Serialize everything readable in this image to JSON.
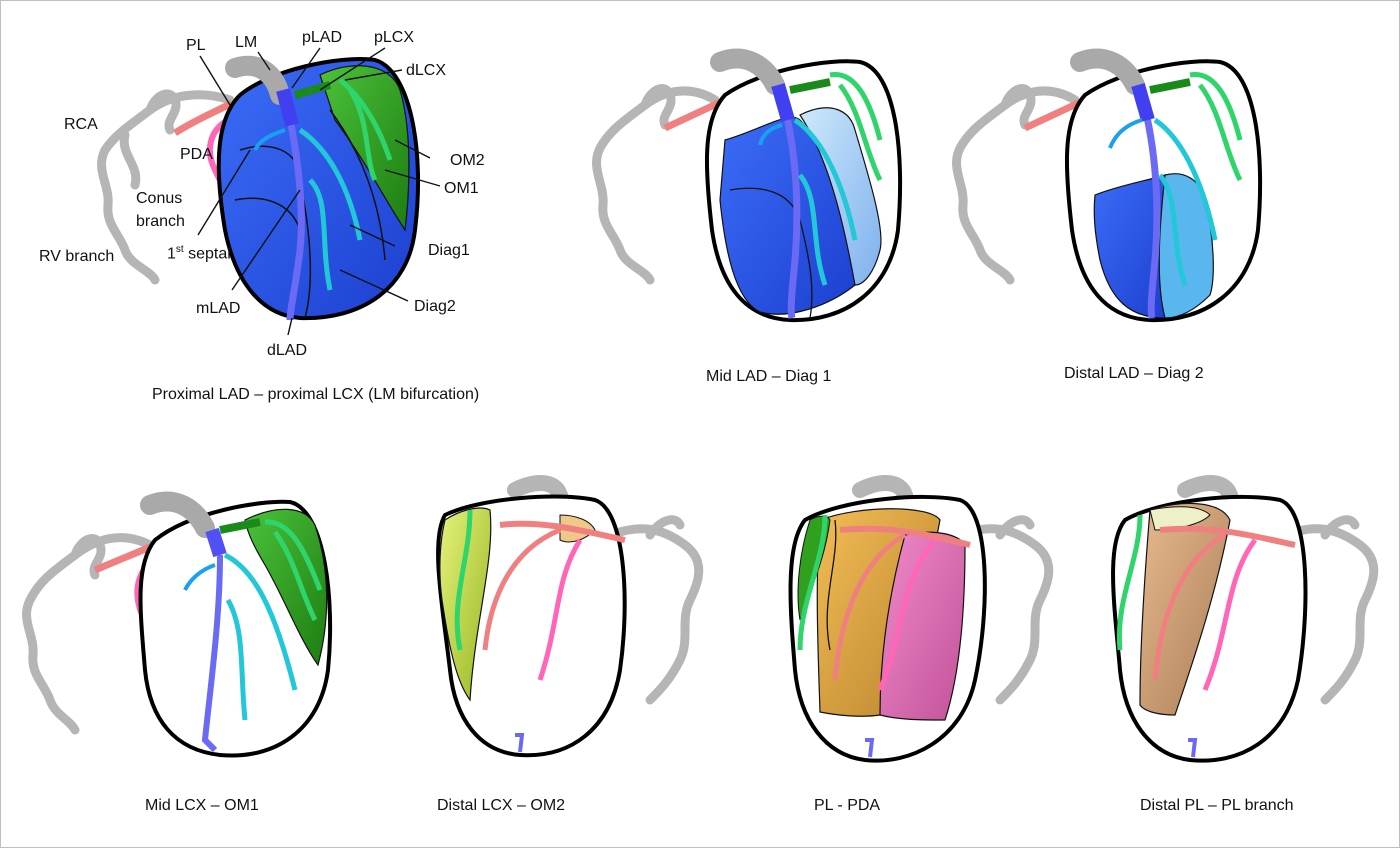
{
  "labels": {
    "pl": "PL",
    "lm": "LM",
    "plad": "pLAD",
    "plcx": "pLCX",
    "dlcx": "dLCX",
    "rca": "RCA",
    "pda": "PDA",
    "om2": "OM2",
    "om1": "OM1",
    "conus_line1": "Conus",
    "conus_line2": "branch",
    "septal_num": "1",
    "septal_sup": "st",
    "septal_text": " septal",
    "rv_branch": "RV branch",
    "diag1": "Diag1",
    "diag2": "Diag2",
    "mlad": "mLAD",
    "dlad": "dLAD"
  },
  "captions": {
    "p1": "Proximal LAD – proximal LCX (LM bifurcation)",
    "p2": "Mid LAD – Diag 1",
    "p3": "Distal LAD – Diag 2",
    "p4": "Mid LCX – OM1",
    "p5": "Distal LCX – OM2",
    "p6": "PL - PDA",
    "p7": "Distal PL – PL branch"
  },
  "colors": {
    "lad_region": "#2b5ef0",
    "lcx_region": "#2fa11f",
    "diag_region": "#9cc4f5",
    "diag2_region": "#5ab6ee",
    "lcx_light": "#b9dd3a",
    "rca_orange": "#e3a43c",
    "pda_pink": "#e26fb2",
    "pl_tan": "#c99a72",
    "grey_artery": "#b0b0b0",
    "lad_artery": "#5a5ef5",
    "lcx_artery": "#1f8f1f",
    "branch_green": "#2fd46b",
    "branch_cyan": "#24c6d6",
    "rca_artery": "#f08080",
    "pda_artery": "#ff66b8"
  }
}
